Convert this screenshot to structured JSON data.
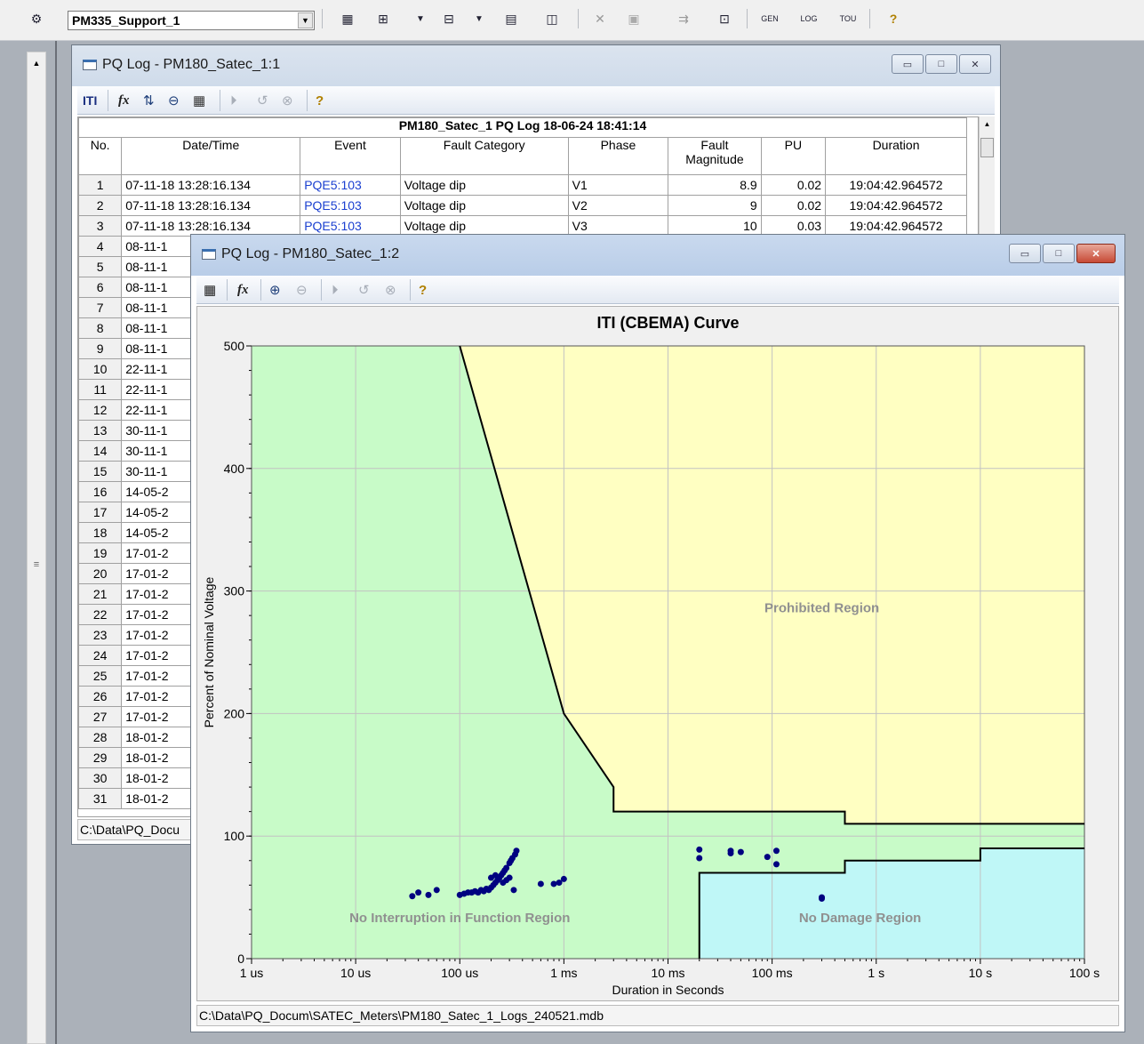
{
  "toolbar": {
    "site_combo": "PM335_Support_1",
    "icons": [
      "connect-icon",
      "table-icon",
      "upload-icon",
      "download-icon",
      "chart-icon",
      "waveform-icon",
      "delete-icon",
      "properties-icon",
      "merge-icon",
      "reload-icon",
      "gen-icon",
      "log-icon",
      "tou-icon",
      "help-icon"
    ],
    "gen_label": "GEN",
    "log_label": "LOG",
    "tou_label": "TOU"
  },
  "window1": {
    "title": "PQ Log - PM180_Satec_1:1",
    "toolbar_iti": "ITI",
    "grid_caption": "PM180_Satec_1   PQ Log   18-06-24 18:41:14",
    "columns": [
      "No.",
      "Date/Time",
      "Event",
      "Fault Category",
      "Phase",
      "Fault Magnitude",
      "PU",
      "Duration"
    ],
    "rows": [
      {
        "no": "1",
        "datetime": "07-11-18  13:28:16.134",
        "event": "PQE5:103",
        "category": "Voltage dip",
        "phase": "V1",
        "magnitude": "8.9",
        "pu": "0.02",
        "duration": "19:04:42.964572"
      },
      {
        "no": "2",
        "datetime": "07-11-18  13:28:16.134",
        "event": "PQE5:103",
        "category": "Voltage dip",
        "phase": "V2",
        "magnitude": "9",
        "pu": "0.02",
        "duration": "19:04:42.964572"
      },
      {
        "no": "3",
        "datetime": "07-11-18  13:28:16.134",
        "event": "PQE5:103",
        "category": "Voltage dip",
        "phase": "V3",
        "magnitude": "10",
        "pu": "0.03",
        "duration": "19:04:42.964572"
      },
      {
        "no": "4",
        "datetime": "08-11-1"
      },
      {
        "no": "5",
        "datetime": "08-11-1"
      },
      {
        "no": "6",
        "datetime": "08-11-1"
      },
      {
        "no": "7",
        "datetime": "08-11-1"
      },
      {
        "no": "8",
        "datetime": "08-11-1"
      },
      {
        "no": "9",
        "datetime": "08-11-1"
      },
      {
        "no": "10",
        "datetime": "22-11-1"
      },
      {
        "no": "11",
        "datetime": "22-11-1"
      },
      {
        "no": "12",
        "datetime": "22-11-1"
      },
      {
        "no": "13",
        "datetime": "30-11-1"
      },
      {
        "no": "14",
        "datetime": "30-11-1"
      },
      {
        "no": "15",
        "datetime": "30-11-1"
      },
      {
        "no": "16",
        "datetime": "14-05-2"
      },
      {
        "no": "17",
        "datetime": "14-05-2"
      },
      {
        "no": "18",
        "datetime": "14-05-2"
      },
      {
        "no": "19",
        "datetime": "17-01-2"
      },
      {
        "no": "20",
        "datetime": "17-01-2"
      },
      {
        "no": "21",
        "datetime": "17-01-2"
      },
      {
        "no": "22",
        "datetime": "17-01-2"
      },
      {
        "no": "23",
        "datetime": "17-01-2"
      },
      {
        "no": "24",
        "datetime": "17-01-2"
      },
      {
        "no": "25",
        "datetime": "17-01-2"
      },
      {
        "no": "26",
        "datetime": "17-01-2"
      },
      {
        "no": "27",
        "datetime": "17-01-2"
      },
      {
        "no": "28",
        "datetime": "18-01-2"
      },
      {
        "no": "29",
        "datetime": "18-01-2"
      },
      {
        "no": "30",
        "datetime": "18-01-2"
      },
      {
        "no": "31",
        "datetime": "18-01-2"
      }
    ],
    "status": "C:\\Data\\PQ_Docu"
  },
  "window2": {
    "title": "PQ Log - PM180_Satec_1:2",
    "status": "C:\\Data\\PQ_Docum\\SATEC_Meters\\PM180_Satec_1_Logs_240521.mdb"
  },
  "chart_data": {
    "type": "scatter",
    "title": "ITI (CBEMA) Curve",
    "xlabel": "Duration in Seconds",
    "ylabel": "Percent of Nominal Voltage",
    "x_scale": "log",
    "xlim": [
      1e-06,
      100
    ],
    "ylim": [
      0,
      500
    ],
    "x_ticks": [
      {
        "v": 1e-06,
        "label": "1 us"
      },
      {
        "v": 1e-05,
        "label": "10 us"
      },
      {
        "v": 0.0001,
        "label": "100 us"
      },
      {
        "v": 0.001,
        "label": "1 ms"
      },
      {
        "v": 0.01,
        "label": "10 ms"
      },
      {
        "v": 0.1,
        "label": "100 ms"
      },
      {
        "v": 1,
        "label": "1 s"
      },
      {
        "v": 10,
        "label": "10 s"
      },
      {
        "v": 100,
        "label": "100 s"
      }
    ],
    "y_ticks": [
      0,
      100,
      200,
      300,
      400,
      500
    ],
    "grid": true,
    "regions": {
      "prohibited": "Prohibited Region",
      "no_interruption": "No Interruption in Function Region",
      "no_damage": "No Damage Region"
    },
    "colors": {
      "prohibited": "#ffffc2",
      "no_interruption": "#c8fbc8",
      "no_damage": "#bff7f7",
      "points": "#000080",
      "curve": "#000000"
    },
    "upper_curve": [
      [
        0.0001,
        500
      ],
      [
        0.001,
        200
      ],
      [
        0.003,
        140
      ],
      [
        0.003,
        120
      ],
      [
        0.5,
        120
      ],
      [
        0.5,
        110
      ],
      [
        100,
        110
      ]
    ],
    "lower_curve": [
      [
        0.02,
        0
      ],
      [
        0.02,
        70
      ],
      [
        0.5,
        70
      ],
      [
        0.5,
        80
      ],
      [
        10,
        80
      ],
      [
        10,
        90
      ],
      [
        100,
        90
      ]
    ],
    "points": [
      [
        3.5e-05,
        51
      ],
      [
        4e-05,
        54
      ],
      [
        5e-05,
        52
      ],
      [
        6e-05,
        56
      ],
      [
        0.0001,
        52
      ],
      [
        0.00011,
        53
      ],
      [
        0.00012,
        54
      ],
      [
        0.00013,
        54
      ],
      [
        0.00014,
        55
      ],
      [
        0.00015,
        54
      ],
      [
        0.00016,
        56
      ],
      [
        0.00017,
        55
      ],
      [
        0.00018,
        57
      ],
      [
        0.00019,
        56
      ],
      [
        0.0002,
        58
      ],
      [
        0.00021,
        60
      ],
      [
        0.00022,
        62
      ],
      [
        0.00023,
        64
      ],
      [
        0.00024,
        66
      ],
      [
        0.00025,
        68
      ],
      [
        0.00026,
        70
      ],
      [
        0.00027,
        72
      ],
      [
        0.00028,
        74
      ],
      [
        0.0003,
        78
      ],
      [
        0.00031,
        80
      ],
      [
        0.00032,
        82
      ],
      [
        0.00034,
        85
      ],
      [
        0.00035,
        88
      ],
      [
        0.00026,
        62
      ],
      [
        0.00028,
        64
      ],
      [
        0.0003,
        66
      ],
      [
        0.00033,
        56
      ],
      [
        0.00022,
        68
      ],
      [
        0.0002,
        66
      ],
      [
        0.0006,
        61
      ],
      [
        0.0008,
        61
      ],
      [
        0.001,
        65
      ],
      [
        0.0009,
        62
      ],
      [
        0.02,
        82
      ],
      [
        0.02,
        89
      ],
      [
        0.04,
        88
      ],
      [
        0.04,
        86
      ],
      [
        0.05,
        87
      ],
      [
        0.09,
        83
      ],
      [
        0.11,
        88
      ],
      [
        0.11,
        77
      ],
      [
        0.3,
        50
      ],
      [
        0.3,
        49
      ]
    ]
  }
}
